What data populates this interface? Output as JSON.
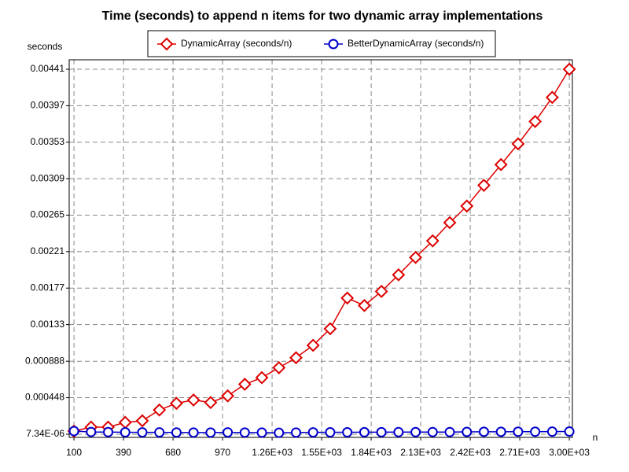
{
  "chart_data": {
    "type": "line",
    "title": "Time (seconds) to append n items for two dynamic array implementations",
    "y_label": "seconds",
    "x_label": "n",
    "x": [
      100,
      200,
      300,
      400,
      500,
      600,
      700,
      800,
      900,
      1000,
      1100,
      1200,
      1300,
      1400,
      1500,
      1600,
      1700,
      1800,
      1900,
      2000,
      2100,
      2200,
      2300,
      2400,
      2500,
      2600,
      2700,
      2800,
      2900,
      3000
    ],
    "series": [
      {
        "name": "DynamicArray (seconds/n)",
        "color": "#dd0000",
        "marker": "diamond",
        "values": [
          4.5e-05,
          9.3e-05,
          9.3e-05,
          0.00015,
          0.00017,
          0.0003,
          0.00038,
          0.00042,
          0.00039,
          0.00047,
          0.00061,
          0.00069,
          0.00081,
          0.00093,
          0.00108,
          0.00128,
          0.00165,
          0.00156,
          0.00173,
          0.00193,
          0.00214,
          0.00234,
          0.00256,
          0.00276,
          0.00301,
          0.00326,
          0.00351,
          0.00378,
          0.00407,
          0.00441
        ]
      },
      {
        "name": "BetterDynamicArray (seconds/n)",
        "color": "#0000cc",
        "marker": "circle",
        "values": [
          4.5e-05,
          3.5e-05,
          3.3e-05,
          3.1e-05,
          3e-05,
          3e-05,
          2.9e-05,
          2.8e-05,
          2.8e-05,
          3e-05,
          2.8e-05,
          2.7e-05,
          2.5e-05,
          2.8e-05,
          3e-05,
          3.1e-05,
          3.1e-05,
          3.2e-05,
          3.2e-05,
          3.3e-05,
          3.3e-05,
          3.4e-05,
          3.4e-05,
          3.6e-05,
          3.7e-05,
          3.7e-05,
          3.8e-05,
          3.8e-05,
          3.9e-05,
          4e-05
        ]
      }
    ],
    "xlim": [
      72,
      3018
    ],
    "xticks": [
      100,
      390,
      680,
      970,
      {
        "value": 1260,
        "label": "1.26E+03"
      },
      {
        "value": 1550,
        "label": "1.55E+03"
      },
      {
        "value": 1840,
        "label": "1.84E+03"
      },
      {
        "value": 2130,
        "label": "2.13E+03"
      },
      {
        "value": 2420,
        "label": "2.42E+03"
      },
      {
        "value": 2710,
        "label": "2.71E+03"
      },
      {
        "value": 3000,
        "label": "3.00E+03"
      }
    ],
    "ylim": [
      -3.06e-05,
      0.004524
    ],
    "yticks": [
      {
        "value": 7.34e-06,
        "label": "7.34E-06"
      },
      0.000448,
      0.000888,
      0.00133,
      0.00177,
      0.00221,
      0.00265,
      0.00309,
      0.00353,
      0.00397,
      0.00441
    ],
    "grid": true,
    "legend": "top"
  }
}
